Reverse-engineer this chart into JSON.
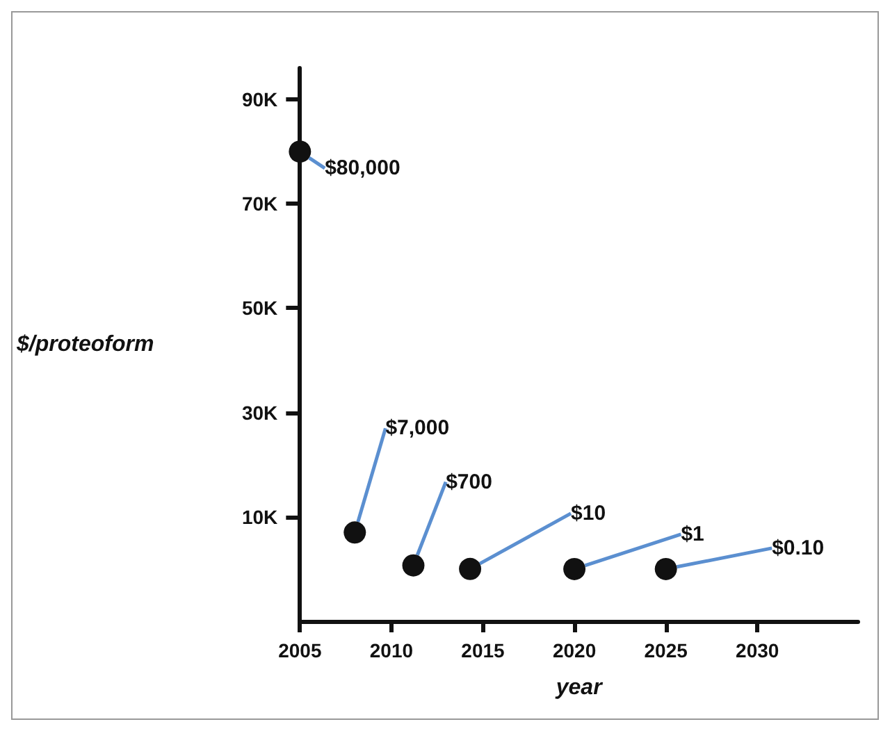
{
  "chart_data": {
    "type": "scatter",
    "xlabel": "year",
    "ylabel": "$/proteoform",
    "x": [
      2005,
      2008,
      2011.2,
      2014.3,
      2020,
      2025
    ],
    "values": [
      80000,
      7000,
      700,
      10,
      1,
      0.1
    ],
    "value_labels": [
      "$80,000",
      "$7,000",
      "$700",
      "$10",
      "$1",
      "$0.10"
    ],
    "color": "#111111",
    "marker": "circle",
    "grid": false,
    "xlim": [
      2005,
      2035.5
    ],
    "xticks": [
      2005,
      2010,
      2015,
      2020,
      2025,
      2030
    ],
    "ylim": [
      -10000,
      96000
    ],
    "yticks": [
      {
        "value": 10000,
        "label": "10K"
      },
      {
        "value": 30000,
        "label": "30K"
      },
      {
        "value": 50000,
        "label": "50K"
      },
      {
        "value": 70000,
        "label": "70K"
      },
      {
        "value": 90000,
        "label": "90K"
      }
    ]
  }
}
